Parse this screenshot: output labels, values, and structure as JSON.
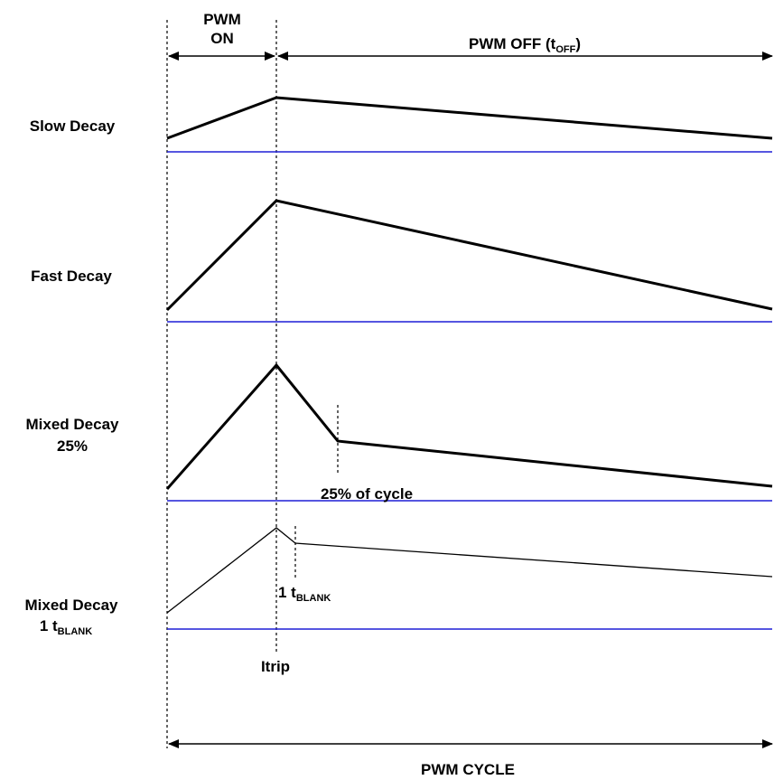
{
  "header": {
    "pwm_on_line1": "PWM",
    "pwm_on_line2": "ON",
    "pwm_off_main": "PWM OFF (t",
    "pwm_off_sub": "OFF",
    "pwm_off_close": ")"
  },
  "rows": [
    {
      "label_line1": "Slow Decay"
    },
    {
      "label_line1": "Fast Decay"
    },
    {
      "label_line1": "Mixed Decay",
      "label_line2": "25%",
      "annotation": "25% of cycle"
    },
    {
      "label_line1": "Mixed Decay",
      "label_line2_main": "1 t",
      "label_line2_sub": "BLANK",
      "annotation_main": "1 t",
      "annotation_sub": "BLANK"
    }
  ],
  "itrip_label": "Itrip",
  "footer": {
    "pwm_cycle": "PWM CYCLE"
  },
  "colors": {
    "baseline": "#1f1fd6",
    "trace": "#000000"
  }
}
